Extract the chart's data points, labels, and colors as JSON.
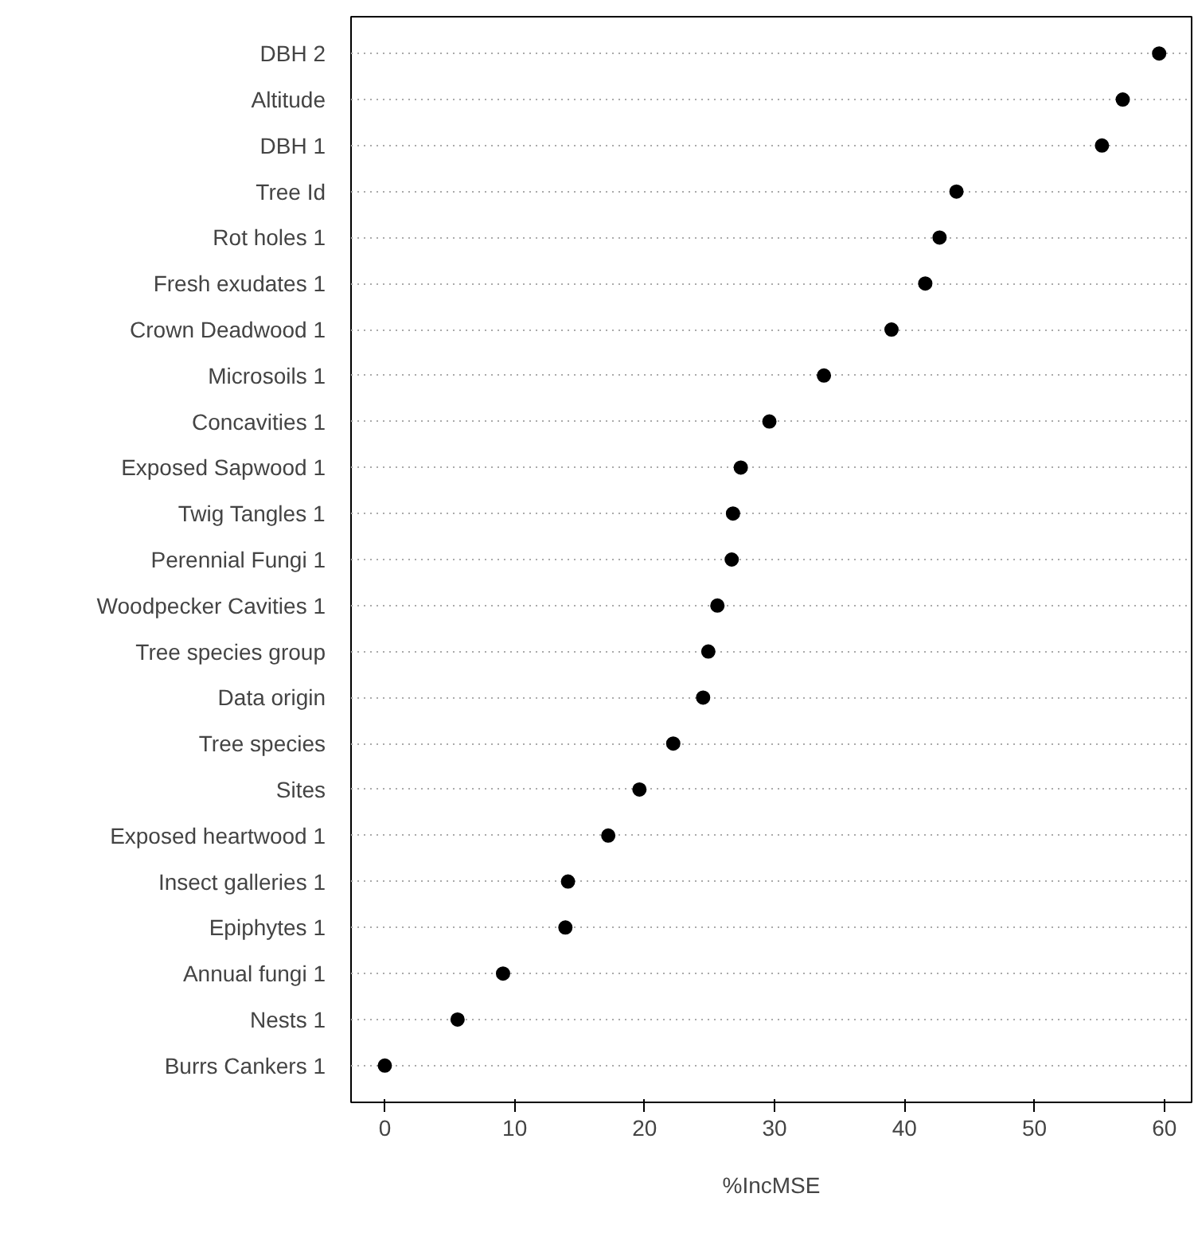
{
  "chart_data": {
    "type": "scatter",
    "xlabel": "%IncMSE",
    "categories": [
      "DBH 2",
      "Altitude",
      "DBH 1",
      "Tree Id",
      "Rot holes 1",
      "Fresh exudates 1",
      "Crown Deadwood 1",
      "Microsoils 1",
      "Concavities 1",
      "Exposed Sapwood 1",
      "Twig Tangles 1",
      "Perennial Fungi 1",
      "Woodpecker Cavities 1",
      "Tree species group",
      "Data origin",
      "Tree species",
      "Sites",
      "Exposed heartwood 1",
      "Insect galleries 1",
      "Epiphytes 1",
      "Annual fungi 1",
      "Nests 1",
      "Burrs Cankers 1"
    ],
    "orientation": "horizontal",
    "values": [
      59.6,
      56.8,
      55.2,
      44.0,
      42.7,
      41.6,
      39.0,
      33.8,
      29.6,
      27.4,
      26.8,
      26.7,
      25.6,
      24.9,
      24.5,
      22.2,
      19.6,
      17.2,
      14.1,
      13.9,
      9.1,
      5.6,
      0
    ],
    "color": "#000000",
    "xlim": [
      -2.6,
      62.1
    ],
    "xticks": [
      0,
      10,
      20,
      30,
      40,
      50,
      60
    ],
    "grid": "y",
    "marker": "circle",
    "line_style": "dotted"
  }
}
